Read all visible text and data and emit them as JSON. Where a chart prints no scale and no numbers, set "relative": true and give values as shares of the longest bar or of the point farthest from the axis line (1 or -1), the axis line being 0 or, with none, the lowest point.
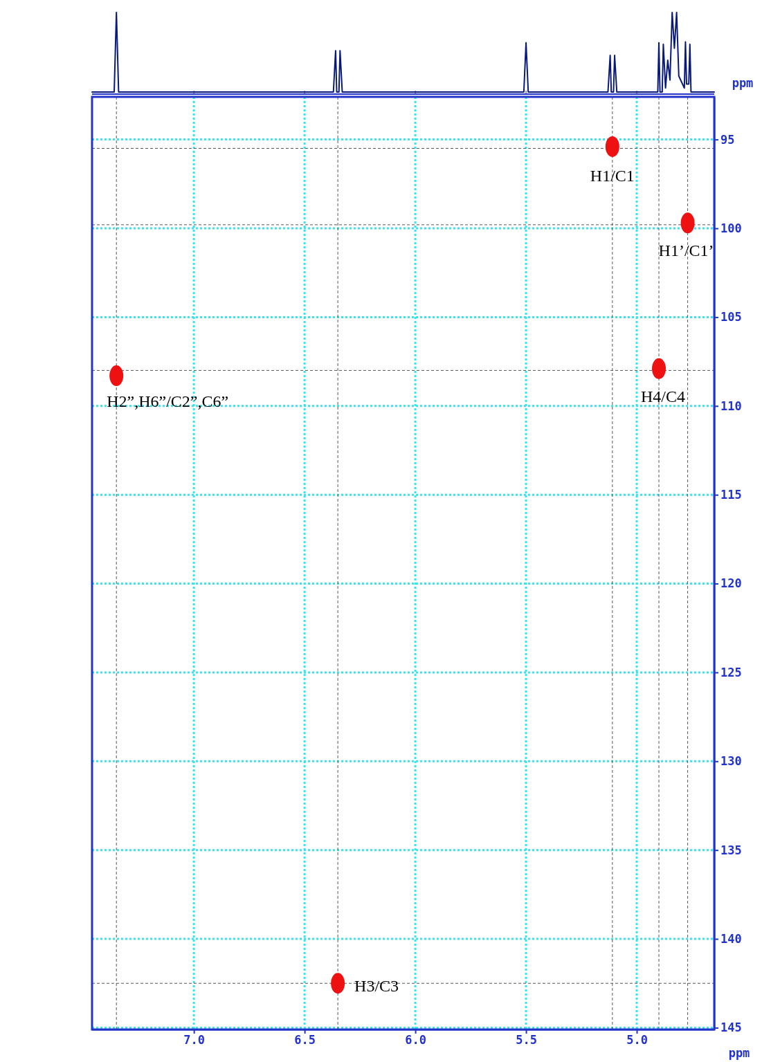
{
  "chart_data": [
    {
      "type": "line",
      "relative": true,
      "tick_labels": false,
      "xlim": [
        7.46,
        4.65
      ],
      "xticks": [
        7,
        6.5,
        6,
        5.5,
        5
      ],
      "series": [
        {
          "color": "#0a1a78",
          "x": [
            7.46,
            7.36,
            7.35,
            7.34,
            6.37,
            6.36,
            6.355,
            6.345,
            6.34,
            6.33,
            5.51,
            5.5,
            5.49,
            5.13,
            5.12,
            5.115,
            5.105,
            5.1,
            5.09,
            4.905,
            4.9,
            4.895,
            4.885,
            4.88,
            4.87,
            4.86,
            4.85,
            4.84,
            4.83,
            4.82,
            4.81,
            4.785,
            4.78,
            4.775,
            4.765,
            4.76,
            4.755,
            4.65
          ],
          "values": [
            0,
            0,
            1,
            0,
            0,
            0.52,
            0,
            0,
            0.52,
            0,
            0,
            0.62,
            0,
            0,
            0.46,
            0,
            0,
            0.46,
            0,
            0,
            0.62,
            0,
            0,
            0.6,
            0.05,
            0.4,
            0.15,
            1,
            0.55,
            1,
            0.2,
            0.05,
            0.63,
            0.1,
            0.1,
            0.6,
            0,
            0
          ]
        }
      ]
    },
    {
      "type": "scatter",
      "xlabel": "ppm",
      "ylabel": "ppm",
      "xlim": [
        7.46,
        4.65
      ],
      "ylim": [
        145.1,
        92.6
      ],
      "xticks": [
        {
          "value": 7,
          "label": "7.0"
        },
        {
          "value": 6.5,
          "label": "6.5"
        },
        {
          "value": 6,
          "label": "6.0"
        },
        {
          "value": 5.5,
          "label": "5.5"
        },
        {
          "value": 5,
          "label": "5.0"
        }
      ],
      "yticks": [
        95,
        100,
        105,
        110,
        115,
        120,
        125,
        130,
        135,
        140,
        145
      ],
      "grid": true,
      "marker": "circle",
      "series": [
        {
          "color": "#ee1111",
          "x": [
            5.11,
            4.77,
            4.9,
            7.35,
            6.35
          ],
          "values": [
            95.4,
            99.7,
            107.9,
            108.3,
            142.5
          ]
        }
      ],
      "ref_lines": [
        {
          "axis": "x",
          "value": 7.35,
          "color": "#555555",
          "line_style": "dashed"
        },
        {
          "axis": "x",
          "value": 6.35,
          "color": "#555555",
          "line_style": "dashed"
        },
        {
          "axis": "x",
          "value": 5.11,
          "color": "#555555",
          "line_style": "dashed"
        },
        {
          "axis": "x",
          "value": 4.9,
          "color": "#555555",
          "line_style": "dashed"
        },
        {
          "axis": "x",
          "value": 4.77,
          "color": "#555555",
          "line_style": "dashed"
        },
        {
          "axis": "y",
          "value": 95.5,
          "color": "#555555",
          "line_style": "dashed"
        },
        {
          "axis": "y",
          "value": 99.8,
          "color": "#555555",
          "line_style": "dashed"
        },
        {
          "axis": "y",
          "value": 108.0,
          "color": "#555555",
          "line_style": "dashed"
        },
        {
          "axis": "y",
          "value": 142.5,
          "color": "#555555",
          "line_style": "dashed"
        }
      ],
      "annotations": [
        {
          "text": "H1/C1",
          "x": 5.11,
          "y": 95.4
        },
        {
          "text": "H1’/C1’",
          "x": 4.77,
          "y": 99.7
        },
        {
          "text": "H4/C4",
          "x": 4.9,
          "y": 107.9
        },
        {
          "text": "H2”,H6”/C2”,C6”",
          "x": 7.35,
          "y": 108.3
        },
        {
          "text": "H3/C3",
          "x": 6.35,
          "y": 142.5
        }
      ]
    }
  ]
}
